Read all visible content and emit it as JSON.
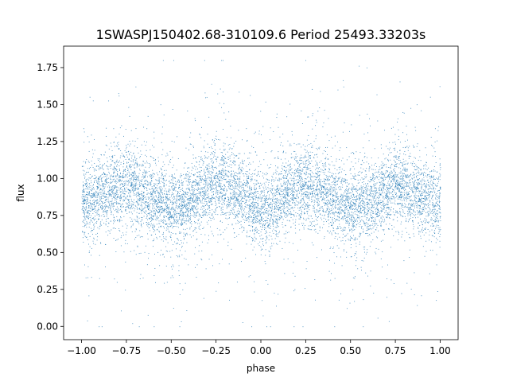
{
  "chart_data": {
    "type": "scatter",
    "title": "1SWASPJ150402.68-310109.6 Period 25493.33203s",
    "xlabel": "phase",
    "ylabel": "flux",
    "xlim": [
      -1.1,
      1.1
    ],
    "ylim": [
      -0.09,
      1.895
    ],
    "x_ticks": [
      -1.0,
      -0.75,
      -0.5,
      -0.25,
      0.0,
      0.25,
      0.5,
      0.75,
      1.0
    ],
    "x_tick_labels": [
      "−1.00",
      "−0.75",
      "−0.50",
      "−0.25",
      "0.00",
      "0.25",
      "0.50",
      "0.75",
      "1.00"
    ],
    "y_ticks": [
      0.0,
      0.25,
      0.5,
      0.75,
      1.0,
      1.25,
      1.5,
      1.75
    ],
    "y_tick_labels": [
      "0.00",
      "0.25",
      "0.50",
      "0.75",
      "1.00",
      "1.25",
      "1.50",
      "1.75"
    ],
    "point_color": "#1f77b4",
    "grid": false,
    "legend": "none",
    "series": [
      {
        "phase_range": [
          -1.0,
          1.0
        ],
        "light_curve_profile": {
          "phase": [
            -1.0,
            -0.9,
            -0.8,
            -0.75,
            -0.7,
            -0.6,
            -0.5,
            -0.45,
            -0.4,
            -0.3,
            -0.25,
            -0.2,
            -0.1,
            0.0,
            0.05,
            0.1,
            0.2,
            0.25,
            0.3,
            0.4,
            0.5,
            0.55,
            0.6,
            0.7,
            0.75,
            0.8,
            0.9,
            1.0
          ],
          "flux_center": [
            0.82,
            0.88,
            0.95,
            0.97,
            0.94,
            0.86,
            0.8,
            0.8,
            0.84,
            0.93,
            0.97,
            0.95,
            0.88,
            0.78,
            0.8,
            0.86,
            0.95,
            0.97,
            0.94,
            0.86,
            0.8,
            0.8,
            0.84,
            0.93,
            0.97,
            0.95,
            0.88,
            0.82
          ]
        },
        "typical_scatter": 0.12,
        "flux_extent": [
          0.0,
          1.8
        ]
      }
    ]
  }
}
